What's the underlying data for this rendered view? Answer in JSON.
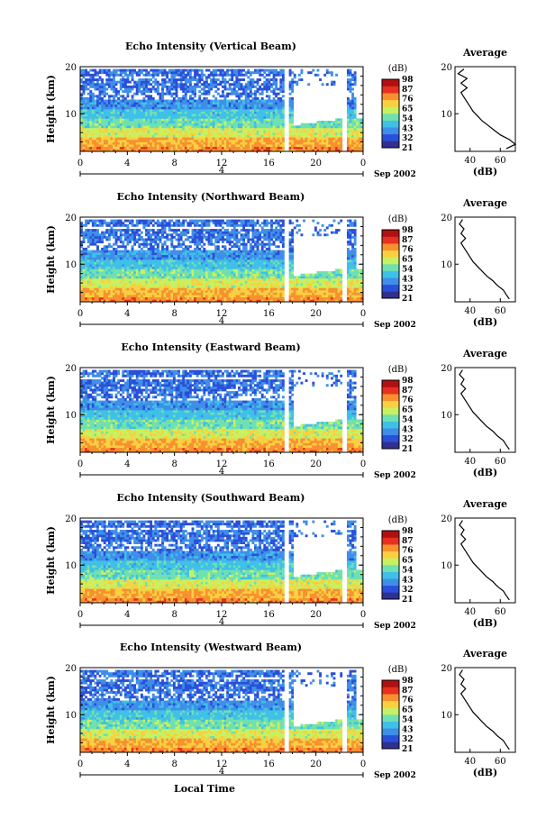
{
  "chart_data": {
    "type": "heatmap",
    "shared": {
      "time_ticks": [
        "0",
        "4",
        "8",
        "12",
        "16",
        "20",
        "0"
      ],
      "date_marker": "4",
      "month_label": "Sep 2002",
      "height_ticks": [
        "10",
        "20"
      ],
      "ylabel": "Height (km)",
      "xlabel": "Local Time",
      "colorbar_unit": "(dB)",
      "colorbar_ticks": [
        "21",
        "32",
        "43",
        "54",
        "65",
        "76",
        "87",
        "98"
      ],
      "colorbar_range": [
        21,
        98
      ],
      "avg_title": "Average",
      "avg_xlabel": "(dB)",
      "avg_xticks": [
        "40",
        "60"
      ],
      "avg_yticks": [
        "10",
        "20"
      ],
      "x_range_hours": [
        0,
        24
      ],
      "height_range_km": [
        2,
        20
      ],
      "avg_x_range_db": [
        30,
        70
      ],
      "colors": [
        "#303090",
        "#2a4fd8",
        "#3f8ee8",
        "#3fc0e8",
        "#6fe0b0",
        "#c8f060",
        "#f8d040",
        "#f89030",
        "#e83020",
        "#b01010"
      ]
    },
    "panels": [
      {
        "title": "Echo Intensity (Vertical Beam)",
        "colorbar_ticks": [
          "21",
          "32",
          "43",
          "54",
          "65",
          "76",
          "87",
          "98"
        ],
        "average_profile": {
          "height_km": [
            2.6,
            3.5,
            4.5,
            5.5,
            6.5,
            7.5,
            8.5,
            9.5,
            10.5,
            11.5,
            12.5,
            13.5,
            14.5,
            15.5,
            16.5,
            17.5,
            18.5,
            19.5
          ],
          "db": [
            64,
            70,
            66,
            60,
            56,
            52,
            48,
            45,
            42,
            40,
            38,
            36,
            34,
            38,
            34,
            38,
            32,
            36
          ]
        }
      },
      {
        "title": "Echo Intensity (Northward Beam)",
        "colorbar_ticks": [
          "21",
          "32",
          "43",
          "54",
          "65",
          "76",
          "87",
          "98"
        ],
        "average_profile": {
          "height_km": [
            2.6,
            3.5,
            4.5,
            5.5,
            6.5,
            7.5,
            8.5,
            9.5,
            10.5,
            11.5,
            12.5,
            13.5,
            14.5,
            15.5,
            16.5,
            17.5,
            18.5,
            19.5
          ],
          "db": [
            66,
            64,
            62,
            58,
            55,
            51,
            48,
            45,
            42,
            40,
            38,
            36,
            34,
            37,
            34,
            36,
            33,
            35
          ]
        }
      },
      {
        "title": "Echo Intensity (Eastward Beam)",
        "colorbar_ticks": [
          "21",
          "32",
          "43",
          "54",
          "65",
          "76",
          "87",
          "98"
        ],
        "average_profile": {
          "height_km": [
            2.6,
            3.5,
            4.5,
            5.5,
            6.5,
            7.5,
            8.5,
            9.5,
            10.5,
            11.5,
            12.5,
            13.5,
            14.5,
            15.5,
            16.5,
            17.5,
            18.5,
            19.5
          ],
          "db": [
            66,
            64,
            62,
            58,
            55,
            51,
            48,
            45,
            42,
            40,
            38,
            36,
            34,
            37,
            34,
            36,
            33,
            35
          ]
        }
      },
      {
        "title": "Echo Intensity (Southward Beam)",
        "colorbar_ticks": [
          "21",
          "32",
          "43",
          "54",
          "65",
          "76",
          "87",
          "98"
        ],
        "average_profile": {
          "height_km": [
            2.6,
            3.5,
            4.5,
            5.5,
            6.5,
            7.5,
            8.5,
            9.5,
            10.5,
            11.5,
            12.5,
            13.5,
            14.5,
            15.5,
            16.5,
            17.5,
            18.5,
            19.5
          ],
          "db": [
            66,
            64,
            62,
            58,
            55,
            51,
            48,
            45,
            42,
            40,
            38,
            36,
            34,
            37,
            34,
            36,
            33,
            35
          ]
        }
      },
      {
        "title": "Echo Intensity (Westward Beam)",
        "colorbar_ticks": [
          "21",
          "32",
          "43",
          "54",
          "65",
          "76",
          "87",
          "98"
        ],
        "average_profile": {
          "height_km": [
            2.6,
            3.5,
            4.5,
            5.5,
            6.5,
            7.5,
            8.5,
            9.5,
            10.5,
            11.5,
            12.5,
            13.5,
            14.5,
            15.5,
            16.5,
            17.5,
            18.5,
            19.5
          ],
          "db": [
            66,
            64,
            62,
            58,
            55,
            51,
            48,
            45,
            42,
            40,
            38,
            36,
            34,
            37,
            34,
            36,
            33,
            35
          ]
        }
      }
    ]
  }
}
